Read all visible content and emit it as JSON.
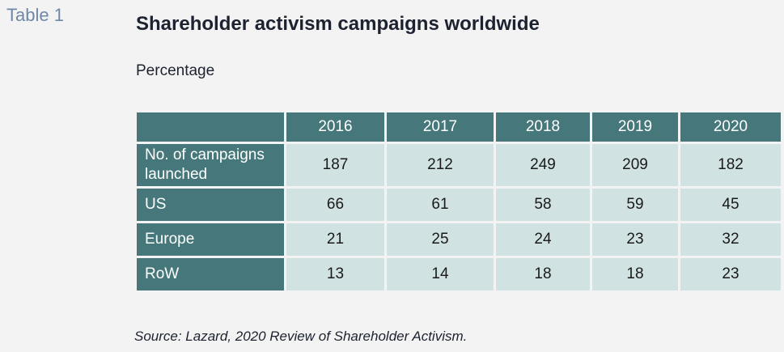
{
  "table_tag": "Table 1",
  "title": "Shareholder activism campaigns worldwide",
  "subtitle": "Percentage",
  "table": {
    "columns": [
      "2016",
      "2017",
      "2018",
      "2019",
      "2020"
    ],
    "rows": [
      {
        "label": "No. of campaigns launched",
        "values": [
          "187",
          "212",
          "249",
          "209",
          "182"
        ]
      },
      {
        "label": "US",
        "values": [
          "66",
          "61",
          "58",
          "59",
          "45"
        ]
      },
      {
        "label": "Europe",
        "values": [
          "21",
          "25",
          "24",
          "23",
          "32"
        ]
      },
      {
        "label": "RoW",
        "values": [
          "13",
          "14",
          "18",
          "18",
          "23"
        ]
      }
    ]
  },
  "source": "Source: Lazard, 2020 Review of Shareholder Activism.",
  "colors": {
    "header_bg": "#46787b",
    "cell_bg": "#d1e2e3",
    "table_tag": "#7088a6",
    "page_bg": "#f3f3f3"
  }
}
